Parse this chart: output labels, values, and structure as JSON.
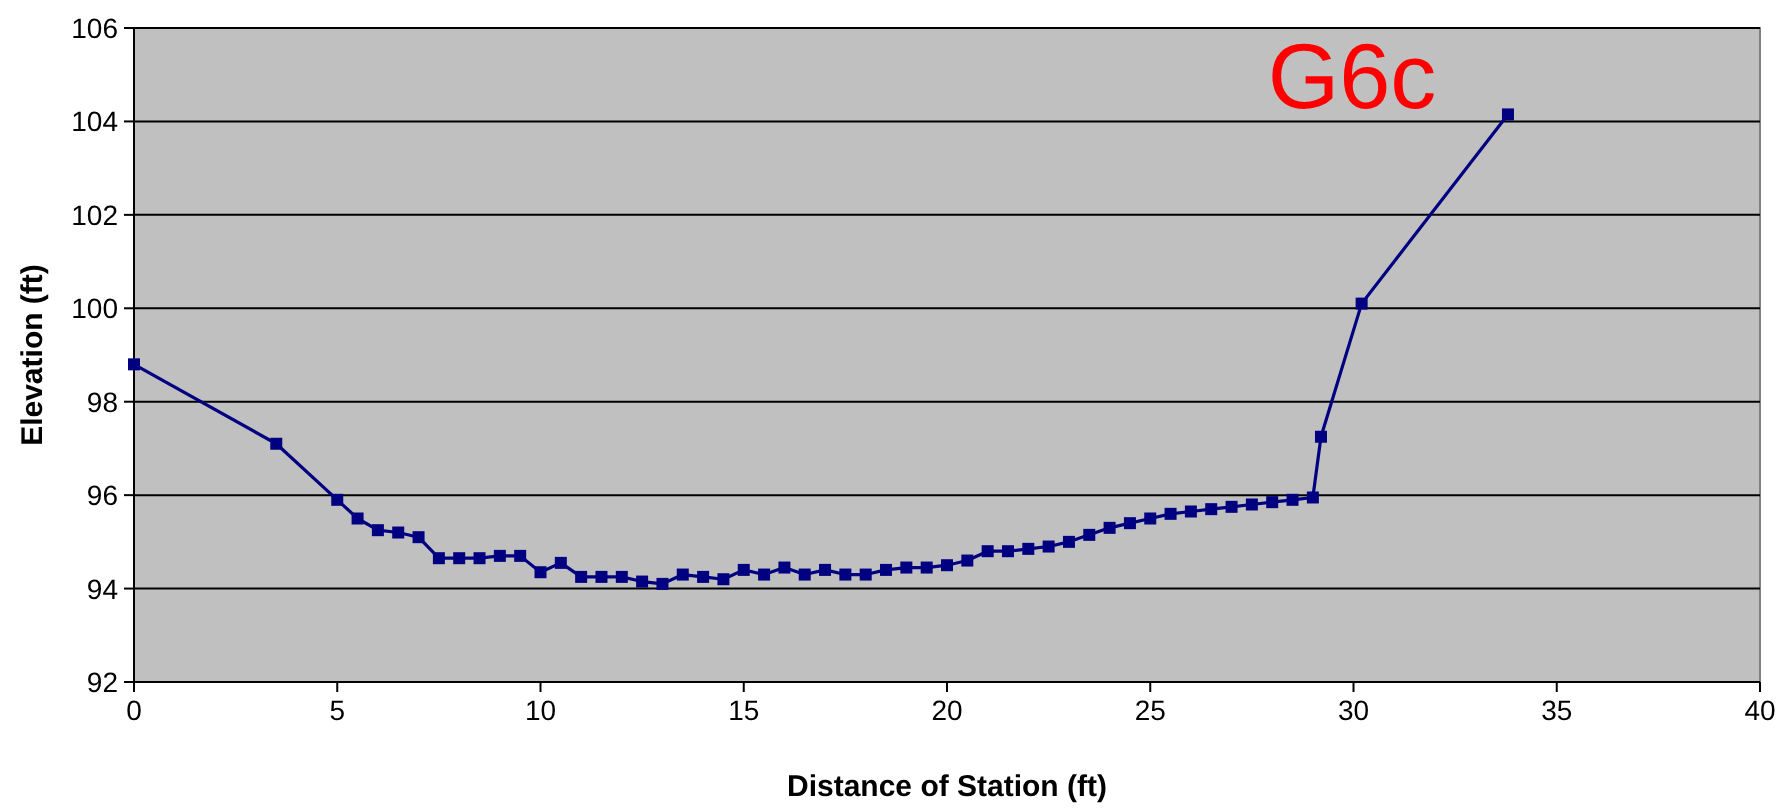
{
  "chart_data": {
    "type": "line",
    "title": "G6c",
    "xlabel": "Distance of Station (ft)",
    "ylabel": "Elevation (ft)",
    "x": [
      0,
      3.5,
      5,
      5.5,
      6,
      6.5,
      7,
      7.5,
      8,
      8.5,
      9,
      9.5,
      10,
      10.5,
      11,
      11.5,
      12,
      12.5,
      13,
      13.5,
      14,
      14.5,
      15,
      15.5,
      16,
      16.5,
      17,
      17.5,
      18,
      18.5,
      19,
      19.5,
      20,
      20.5,
      21,
      21.5,
      22,
      22.5,
      23,
      23.5,
      24,
      24.5,
      25,
      25.5,
      26,
      26.5,
      27,
      27.5,
      28,
      28.5,
      29,
      29.2,
      30.2,
      33.8
    ],
    "series": [
      {
        "color": "#000080",
        "values": [
          98.8,
          97.1,
          95.9,
          95.5,
          95.25,
          95.2,
          95.1,
          94.65,
          94.65,
          94.65,
          94.7,
          94.7,
          94.35,
          94.55,
          94.25,
          94.25,
          94.25,
          94.15,
          94.1,
          94.3,
          94.25,
          94.2,
          94.4,
          94.3,
          94.45,
          94.3,
          94.4,
          94.3,
          94.3,
          94.4,
          94.45,
          94.45,
          94.5,
          94.6,
          94.8,
          94.8,
          94.85,
          94.9,
          95.0,
          95.15,
          95.3,
          95.4,
          95.5,
          95.6,
          95.65,
          95.7,
          95.75,
          95.8,
          95.85,
          95.9,
          95.95,
          97.25,
          100.1,
          104.15
        ]
      }
    ],
    "xlim": [
      0,
      40
    ],
    "xticks": [
      0,
      5,
      10,
      15,
      20,
      25,
      30,
      35,
      40
    ],
    "ylim": [
      92,
      106
    ],
    "yticks": [
      92,
      94,
      96,
      98,
      100,
      102,
      104,
      106
    ],
    "grid": "y",
    "marker": "square",
    "line_style": "solid"
  }
}
